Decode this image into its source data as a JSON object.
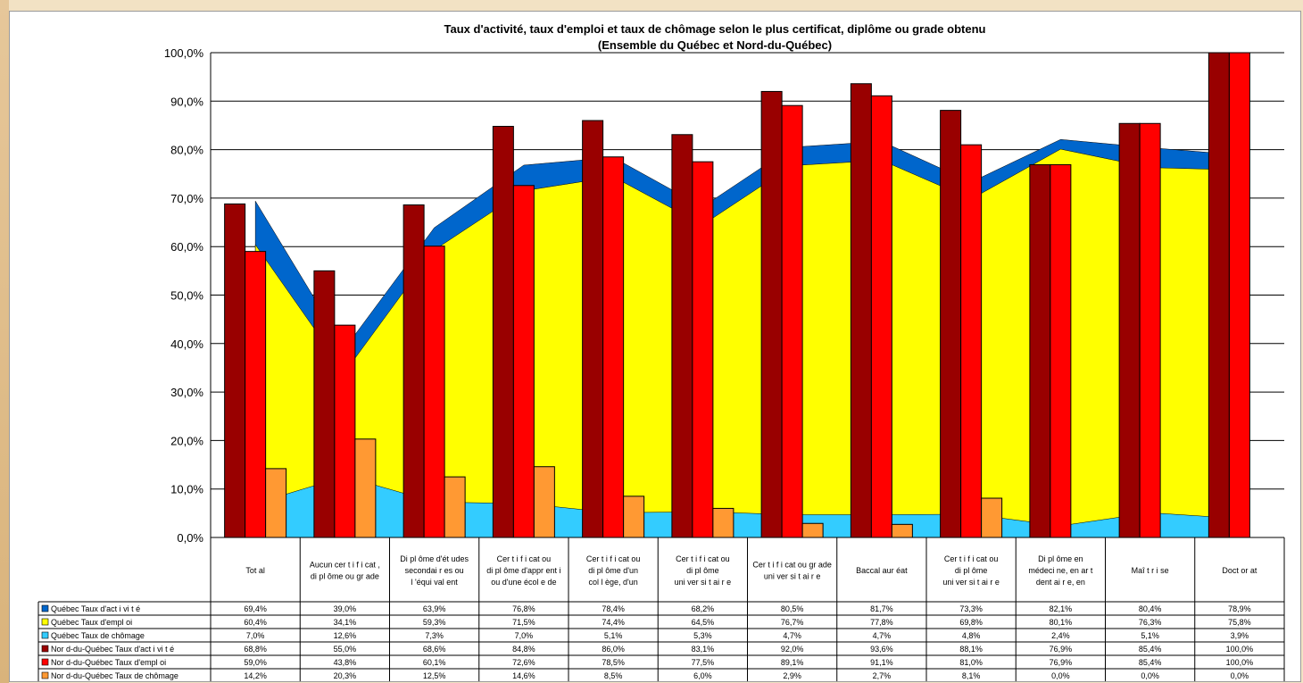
{
  "chart_data": {
    "type": "bar",
    "title": "Taux d'activité, taux d'emploi et taux de chômage selon  le plus certificat, diplôme ou grade obtenu",
    "subtitle": "(Ensemble du Québec et Nord-du-Québec)",
    "ylim": [
      0,
      100
    ],
    "y_ticks": [
      "0,0%",
      "10,0%",
      "20,0%",
      "30,0%",
      "40,0%",
      "50,0%",
      "60,0%",
      "70,0%",
      "80,0%",
      "90,0%",
      "100,0%"
    ],
    "grid": true,
    "legend_placement": "left of data table",
    "categories": [
      [
        "Tot al"
      ],
      [
        "Aucun cer t i f i cat ,",
        "di pl ôme ou gr ade"
      ],
      [
        "Di pl ôme d'ét udes",
        "secondai r es ou",
        "l 'équi val ent"
      ],
      [
        "Cer t i f i cat ou",
        "di pl ôme d'appr ent i",
        "ou d'une écol e de"
      ],
      [
        "Cer t i f i cat ou",
        "di pl ôme d'un",
        "col l ège, d'un"
      ],
      [
        "Cer t i f i cat ou",
        "di pl ôme",
        "uni ver si t ai r e"
      ],
      [
        "Cer t i f i cat ou gr ade",
        "uni ver si t ai r e"
      ],
      [
        "Baccal aur éat"
      ],
      [
        "Cer t i f i cat ou",
        "di pl ôme",
        "uni ver si t ai r e"
      ],
      [
        "Di pl ôme en",
        "médeci ne, en ar t",
        "dent ai r e, en"
      ],
      [
        "Maî t r i se"
      ],
      [
        "Doct or at"
      ]
    ],
    "series": [
      {
        "name": "Québec Taux d'act i vi t é",
        "chart_type": "area",
        "color": "#0066cc",
        "values": [
          69.4,
          39.0,
          63.9,
          76.8,
          78.4,
          68.2,
          80.5,
          81.7,
          73.3,
          82.1,
          80.4,
          78.9
        ],
        "labels": [
          "69,4%",
          "39,0%",
          "63,9%",
          "76,8%",
          "78,4%",
          "68,2%",
          "80,5%",
          "81,7%",
          "73,3%",
          "82,1%",
          "80,4%",
          "78,9%"
        ]
      },
      {
        "name": "Québec Taux d'empl oi",
        "chart_type": "area",
        "color": "#ffff00",
        "values": [
          60.4,
          34.1,
          59.3,
          71.5,
          74.4,
          64.5,
          76.7,
          77.8,
          69.8,
          80.1,
          76.3,
          75.8
        ],
        "labels": [
          "60,4%",
          "34,1%",
          "59,3%",
          "71,5%",
          "74,4%",
          "64,5%",
          "76,7%",
          "77,8%",
          "69,8%",
          "80,1%",
          "76,3%",
          "75,8%"
        ]
      },
      {
        "name": "Québec Taux de chômage",
        "chart_type": "area",
        "color": "#33ccff",
        "values": [
          7.0,
          12.6,
          7.3,
          7.0,
          5.1,
          5.3,
          4.7,
          4.7,
          4.8,
          2.4,
          5.1,
          3.9
        ],
        "labels": [
          "7,0%",
          "12,6%",
          "7,3%",
          "7,0%",
          "5,1%",
          "5,3%",
          "4,7%",
          "4,7%",
          "4,8%",
          "2,4%",
          "5,1%",
          "3,9%"
        ]
      },
      {
        "name": "Nor d-du-Québec Taux d'act i vi t é",
        "chart_type": "bar",
        "color": "#990000",
        "values": [
          68.8,
          55.0,
          68.6,
          84.8,
          86.0,
          83.1,
          92.0,
          93.6,
          88.1,
          76.9,
          85.4,
          100.0
        ],
        "labels": [
          "68,8%",
          "55,0%",
          "68,6%",
          "84,8%",
          "86,0%",
          "83,1%",
          "92,0%",
          "93,6%",
          "88,1%",
          "76,9%",
          "85,4%",
          "100,0%"
        ]
      },
      {
        "name": "Nor d-du-Québec Taux d'empl oi",
        "chart_type": "bar",
        "color": "#ff0000",
        "values": [
          59.0,
          43.8,
          60.1,
          72.6,
          78.5,
          77.5,
          89.1,
          91.1,
          81.0,
          76.9,
          85.4,
          100.0
        ],
        "labels": [
          "59,0%",
          "43,8%",
          "60,1%",
          "72,6%",
          "78,5%",
          "77,5%",
          "89,1%",
          "91,1%",
          "81,0%",
          "76,9%",
          "85,4%",
          "100,0%"
        ]
      },
      {
        "name": "Nor d-du-Québec Taux de chômage",
        "chart_type": "bar",
        "color": "#ff9933",
        "values": [
          14.2,
          20.3,
          12.5,
          14.6,
          8.5,
          6.0,
          2.9,
          2.7,
          8.1,
          0.0,
          0.0,
          0.0
        ],
        "labels": [
          "14,2%",
          "20,3%",
          "12,5%",
          "14,6%",
          "8,5%",
          "6,0%",
          "2,9%",
          "2,7%",
          "8,1%",
          "0,0%",
          "0,0%",
          "0,0%"
        ]
      }
    ]
  }
}
